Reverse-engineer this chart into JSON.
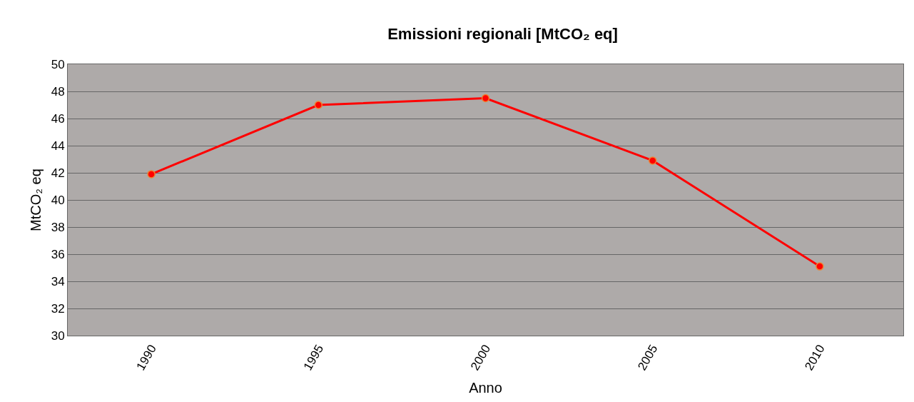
{
  "chart_data": {
    "type": "line",
    "title": "Emissioni regionali [MtCO₂ eq]",
    "xlabel": "Anno",
    "ylabel": "MtCO₂ eq",
    "categories": [
      "1990",
      "1995",
      "2000",
      "2005",
      "2010"
    ],
    "series": [
      {
        "color": "#ff0000",
        "values": [
          41.9,
          47.0,
          47.5,
          42.9,
          35.1
        ]
      }
    ],
    "ylim": [
      30,
      50
    ],
    "yticks": [
      30,
      32,
      34,
      36,
      38,
      40,
      42,
      44,
      46,
      48,
      50
    ],
    "grid": "y",
    "marker": "circle",
    "line_style": "solid"
  }
}
